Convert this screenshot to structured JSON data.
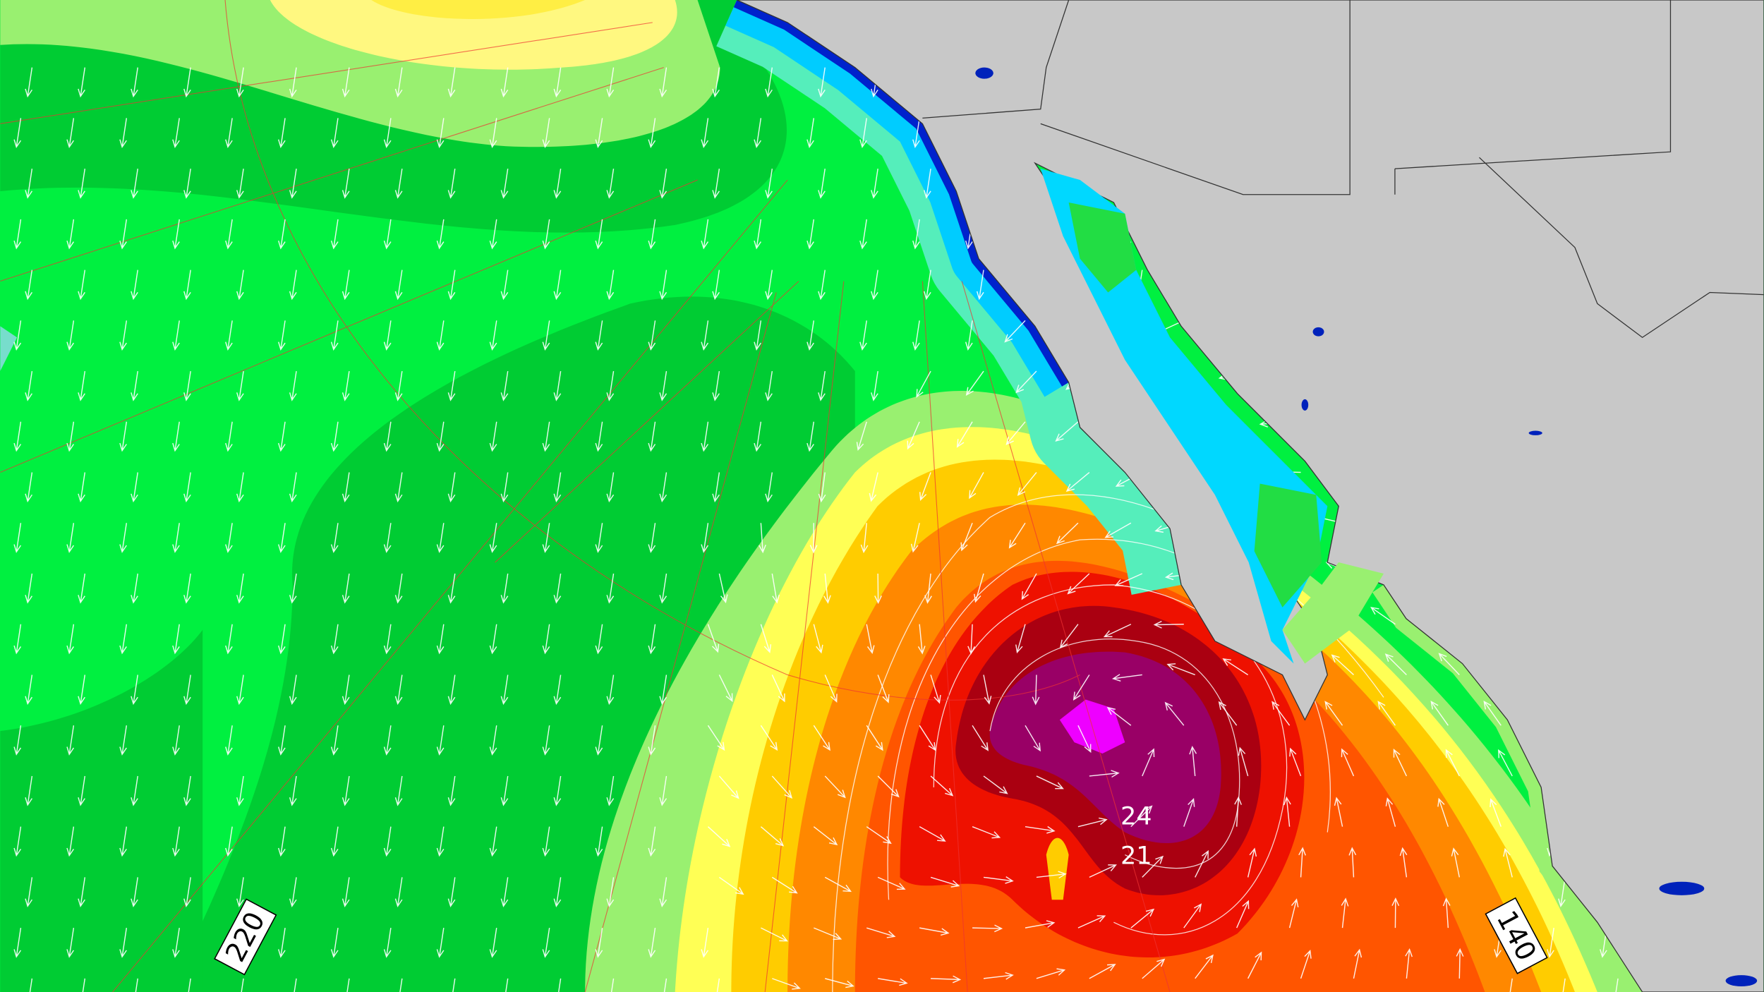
{
  "map": {
    "contour_labels": [
      "24",
      "21"
    ],
    "edge_labels": [
      "220",
      "140"
    ]
  }
}
